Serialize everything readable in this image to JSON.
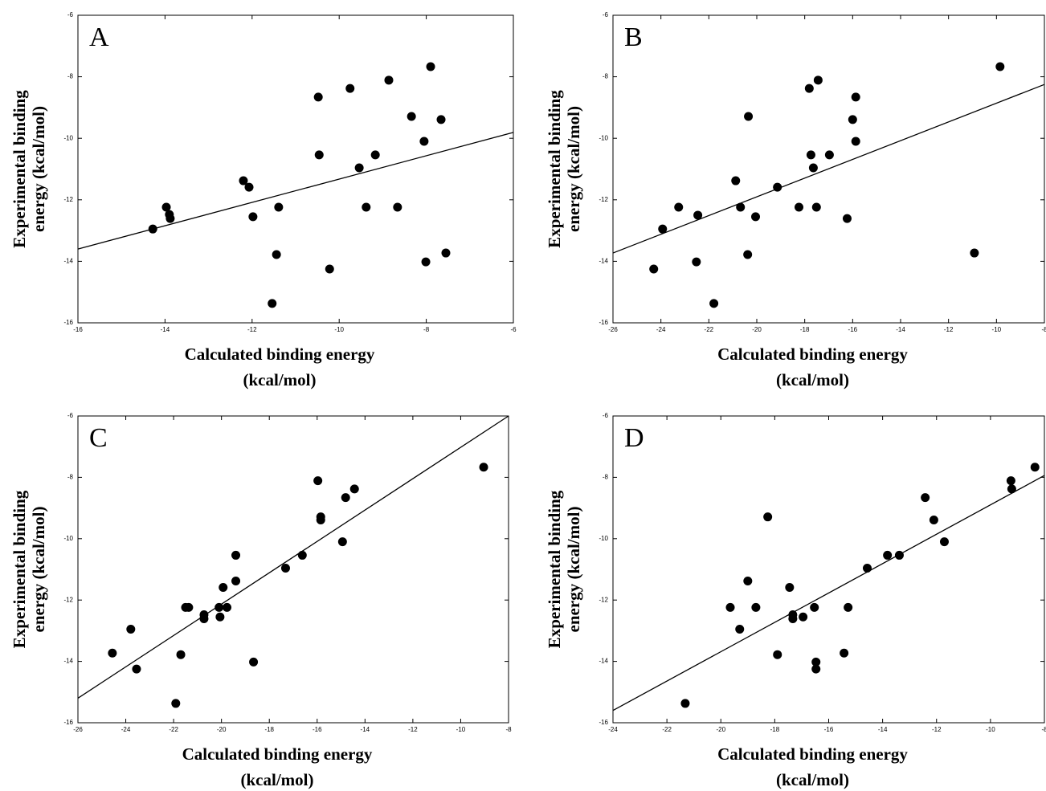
{
  "chart_data": [
    {
      "type": "scatter",
      "panel": "A",
      "xlabel": [
        "Calculated binding energy",
        "(kcal/mol)"
      ],
      "ylabel": [
        "Experimental binding",
        "energy (kcal/mol)"
      ],
      "color": "#000000",
      "x": [
        -14.28,
        -13.97,
        -13.9,
        -13.88,
        -12.2,
        -12.07,
        -11.98,
        -11.39,
        -11.44,
        -11.54,
        -10.48,
        -10.46,
        -10.22,
        -9.75,
        -9.54,
        -9.38,
        -9.17,
        -8.86,
        -8.66,
        -8.34,
        -8.05,
        -8.01,
        -7.9,
        -7.66,
        -7.55
      ],
      "values": [
        -12.95,
        -12.24,
        -12.48,
        -12.61,
        -11.38,
        -11.59,
        -12.55,
        -12.24,
        -13.78,
        -15.37,
        -8.66,
        -10.54,
        -14.25,
        -8.38,
        -10.96,
        -12.24,
        -10.54,
        -8.11,
        -12.24,
        -9.29,
        -10.1,
        -14.02,
        -7.67,
        -9.39,
        -13.73
      ],
      "trendline": {
        "x": [
          -16,
          -6
        ],
        "y": [
          -13.6,
          -9.81
        ]
      },
      "xlim": [
        -16,
        -6
      ],
      "ylim": [
        -16,
        -6
      ],
      "xticks": [
        -16,
        -14,
        -12,
        -10,
        -8,
        -6
      ],
      "yticks": [
        -16,
        -14,
        -12,
        -10,
        -8,
        -6
      ]
    },
    {
      "type": "scatter",
      "panel": "B",
      "xlabel": [
        "Calculated binding energy",
        "(kcal/mol)"
      ],
      "ylabel": [
        "Experimental binding",
        "energy (kcal/mol)"
      ],
      "color": "#000000",
      "x": [
        -24.3,
        -23.93,
        -23.26,
        -22.46,
        -22.52,
        -21.79,
        -20.88,
        -20.68,
        -20.38,
        -20.35,
        -20.05,
        -19.14,
        -18.24,
        -17.81,
        -17.74,
        -17.64,
        -17.51,
        -17.44,
        -16.97,
        -16.23,
        -16.0,
        -15.87,
        -15.87,
        -10.92,
        -9.85
      ],
      "values": [
        -14.25,
        -12.95,
        -12.24,
        -12.5,
        -14.02,
        -15.37,
        -11.38,
        -12.24,
        -13.78,
        -9.29,
        -12.55,
        -11.59,
        -12.24,
        -8.38,
        -10.54,
        -10.96,
        -12.24,
        -8.11,
        -10.54,
        -12.61,
        -9.39,
        -8.66,
        -10.1,
        -13.73,
        -7.67
      ],
      "trendline": {
        "x": [
          -26,
          -8
        ],
        "y": [
          -13.73,
          -8.25
        ]
      },
      "xlim": [
        -26,
        -8
      ],
      "ylim": [
        -16,
        -6
      ],
      "xticks": [
        -26,
        -24,
        -22,
        -20,
        -18,
        -16,
        -14,
        -12,
        -10,
        -8
      ],
      "yticks": [
        -16,
        -14,
        -12,
        -10,
        -8,
        -6
      ]
    },
    {
      "type": "scatter",
      "panel": "C",
      "xlabel": [
        "Calculated binding energy",
        "(kcal/mol)"
      ],
      "ylabel": [
        "Experimental binding",
        "energy (kcal/mol)"
      ],
      "color": "#000000",
      "x": [
        -24.56,
        -23.79,
        -23.55,
        -21.91,
        -21.7,
        -21.5,
        -21.37,
        -20.73,
        -20.73,
        -20.1,
        -20.06,
        -19.93,
        -19.77,
        -19.4,
        -19.4,
        -18.66,
        -17.32,
        -16.62,
        -15.97,
        -15.85,
        -15.85,
        -14.94,
        -14.81,
        -14.44,
        -9.04
      ],
      "values": [
        -13.73,
        -12.95,
        -14.25,
        -15.37,
        -13.78,
        -12.24,
        -12.24,
        -12.48,
        -12.61,
        -12.24,
        -12.55,
        -11.59,
        -12.24,
        -11.38,
        -10.54,
        -14.02,
        -10.96,
        -10.54,
        -8.11,
        -9.29,
        -9.39,
        -10.1,
        -8.66,
        -8.38,
        -7.67
      ],
      "trendline": {
        "x": [
          -26,
          -8
        ],
        "y": [
          -15.2,
          -6
        ]
      },
      "xlim": [
        -26,
        -8
      ],
      "ylim": [
        -16,
        -6
      ],
      "xticks": [
        -26,
        -24,
        -22,
        -20,
        -18,
        -16,
        -14,
        -12,
        -10,
        -8
      ],
      "yticks": [
        -16,
        -14,
        -12,
        -10,
        -8,
        -6
      ]
    },
    {
      "type": "scatter",
      "panel": "D",
      "xlabel": [
        "Calculated binding energy",
        "(kcal/mol)"
      ],
      "ylabel": [
        "Experimental binding",
        "energy (kcal/mol)"
      ],
      "color": "#000000",
      "x": [
        -21.32,
        -19.65,
        -19.3,
        -19.0,
        -18.7,
        -18.26,
        -17.9,
        -17.45,
        -17.33,
        -17.33,
        -16.95,
        -16.53,
        -16.47,
        -16.47,
        -15.43,
        -15.28,
        -14.57,
        -13.82,
        -13.38,
        -12.42,
        -12.1,
        -11.71,
        -9.24,
        -9.21,
        -8.35
      ],
      "values": [
        -15.37,
        -12.24,
        -12.95,
        -11.38,
        -12.24,
        -9.29,
        -13.78,
        -11.59,
        -12.48,
        -12.61,
        -12.55,
        -12.24,
        -14.02,
        -14.25,
        -13.73,
        -12.24,
        -10.96,
        -10.54,
        -10.54,
        -8.66,
        -9.39,
        -10.1,
        -8.11,
        -8.38,
        -7.67
      ],
      "trendline": {
        "x": [
          -24,
          -8
        ],
        "y": [
          -15.6,
          -7.94
        ]
      },
      "xlim": [
        -24,
        -8
      ],
      "ylim": [
        -16,
        -6
      ],
      "xticks": [
        -24,
        -22,
        -20,
        -18,
        -16,
        -14,
        -12,
        -10,
        -8
      ],
      "yticks": [
        -16,
        -14,
        -12,
        -10,
        -8,
        -6
      ]
    }
  ]
}
